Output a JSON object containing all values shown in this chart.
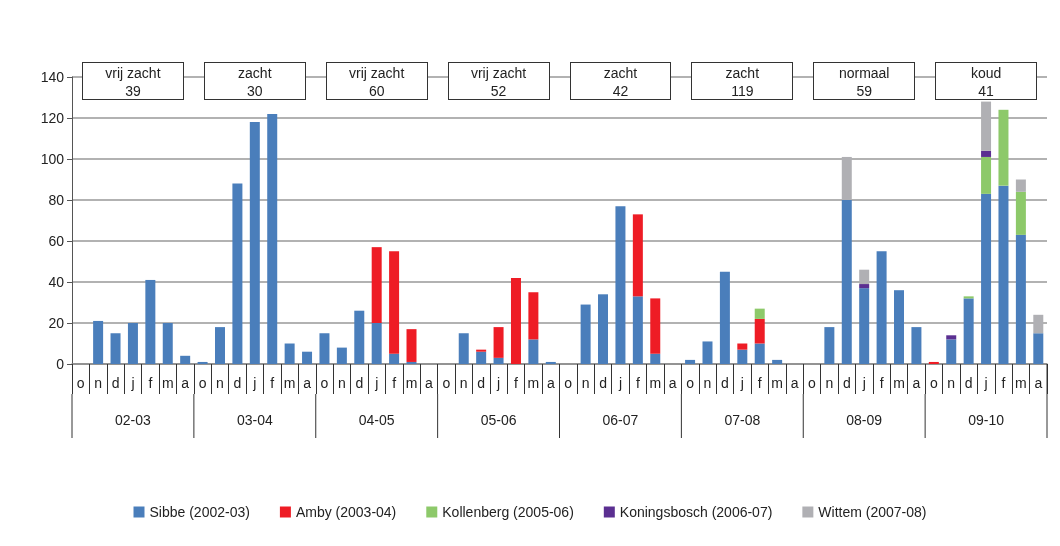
{
  "chart_data": {
    "type": "bar",
    "stacked": true,
    "categories": [
      "o",
      "n",
      "d",
      "j",
      "f",
      "m",
      "a",
      "o",
      "n",
      "d",
      "j",
      "f",
      "m",
      "a",
      "o",
      "n",
      "d",
      "j",
      "f",
      "m",
      "a",
      "o",
      "n",
      "d",
      "j",
      "f",
      "m",
      "a",
      "o",
      "n",
      "d",
      "j",
      "f",
      "m",
      "a",
      "o",
      "n",
      "d",
      "j",
      "f",
      "m",
      "a",
      "o",
      "n",
      "d",
      "j",
      "f",
      "m",
      "a",
      "o",
      "n",
      "d",
      "j",
      "f",
      "m",
      "a"
    ],
    "series": [
      {
        "name": "Sibbe (2002-03)",
        "color": "#4a7ebb",
        "values": [
          null,
          21,
          15,
          20,
          41,
          20,
          4,
          1,
          18,
          88,
          118,
          122,
          10,
          6,
          15,
          8,
          26,
          20,
          5,
          1,
          null,
          null,
          15,
          6,
          3,
          null,
          12,
          1,
          null,
          29,
          34,
          77,
          33,
          5,
          null,
          2,
          11,
          45,
          7,
          10,
          2,
          null,
          null,
          18,
          80,
          37,
          55,
          36,
          18,
          null,
          12,
          32,
          83,
          87,
          63,
          15
        ]
      },
      {
        "name": "Amby (2003-04)",
        "color": "#ee1c25",
        "values": [
          null,
          null,
          null,
          null,
          null,
          null,
          null,
          null,
          null,
          null,
          null,
          null,
          null,
          null,
          null,
          null,
          null,
          37,
          50,
          16,
          null,
          null,
          null,
          1,
          15,
          42,
          23,
          null,
          null,
          null,
          null,
          null,
          40,
          27,
          null,
          null,
          null,
          null,
          3,
          12,
          null,
          null,
          null,
          null,
          null,
          null,
          null,
          null,
          null,
          1,
          null,
          null,
          null,
          null,
          null,
          null
        ]
      },
      {
        "name": "Kollenberg (2005-06)",
        "color": "#8dc96a",
        "values": [
          null,
          null,
          null,
          null,
          null,
          null,
          null,
          null,
          null,
          null,
          null,
          null,
          null,
          null,
          null,
          null,
          null,
          null,
          null,
          null,
          null,
          null,
          null,
          null,
          null,
          null,
          null,
          null,
          null,
          null,
          null,
          null,
          null,
          null,
          null,
          null,
          null,
          null,
          null,
          5,
          null,
          null,
          null,
          null,
          null,
          null,
          null,
          null,
          null,
          null,
          null,
          1,
          18,
          37,
          21,
          null
        ]
      },
      {
        "name": "Koningsbosch (2006-07)",
        "color": "#5b2f91",
        "values": [
          null,
          null,
          null,
          null,
          null,
          null,
          null,
          null,
          null,
          null,
          null,
          null,
          null,
          null,
          null,
          null,
          null,
          null,
          null,
          null,
          null,
          null,
          null,
          null,
          null,
          null,
          null,
          null,
          null,
          null,
          null,
          null,
          null,
          null,
          null,
          null,
          null,
          null,
          null,
          null,
          null,
          null,
          null,
          null,
          null,
          2,
          null,
          null,
          null,
          null,
          2,
          null,
          3,
          null,
          null,
          null
        ]
      },
      {
        "name": "Wittem (2007-08)",
        "color": "#b0b0b4",
        "values": [
          null,
          null,
          null,
          null,
          null,
          null,
          null,
          null,
          null,
          null,
          null,
          null,
          null,
          null,
          null,
          null,
          null,
          null,
          null,
          null,
          null,
          null,
          null,
          null,
          null,
          null,
          null,
          null,
          null,
          null,
          null,
          null,
          null,
          null,
          null,
          null,
          null,
          null,
          null,
          null,
          null,
          null,
          null,
          null,
          21,
          7,
          null,
          null,
          null,
          null,
          null,
          null,
          24,
          null,
          6,
          9
        ]
      }
    ],
    "ylim": [
      0,
      140
    ],
    "yticks": [
      0,
      20,
      40,
      60,
      80,
      100,
      120,
      140
    ],
    "grid": "y",
    "legend": "bottom",
    "annotations": [
      "vrij zacht\n39",
      "zacht\n30",
      "vrij zacht\n60",
      "vrij zacht\n52",
      "zacht\n42",
      "zacht\n119",
      "normaal\n59",
      "koud\n41",
      "02-03",
      "03-04",
      "04-05",
      "05-06",
      "06-07",
      "07-08",
      "08-09",
      "09-10"
    ]
  }
}
